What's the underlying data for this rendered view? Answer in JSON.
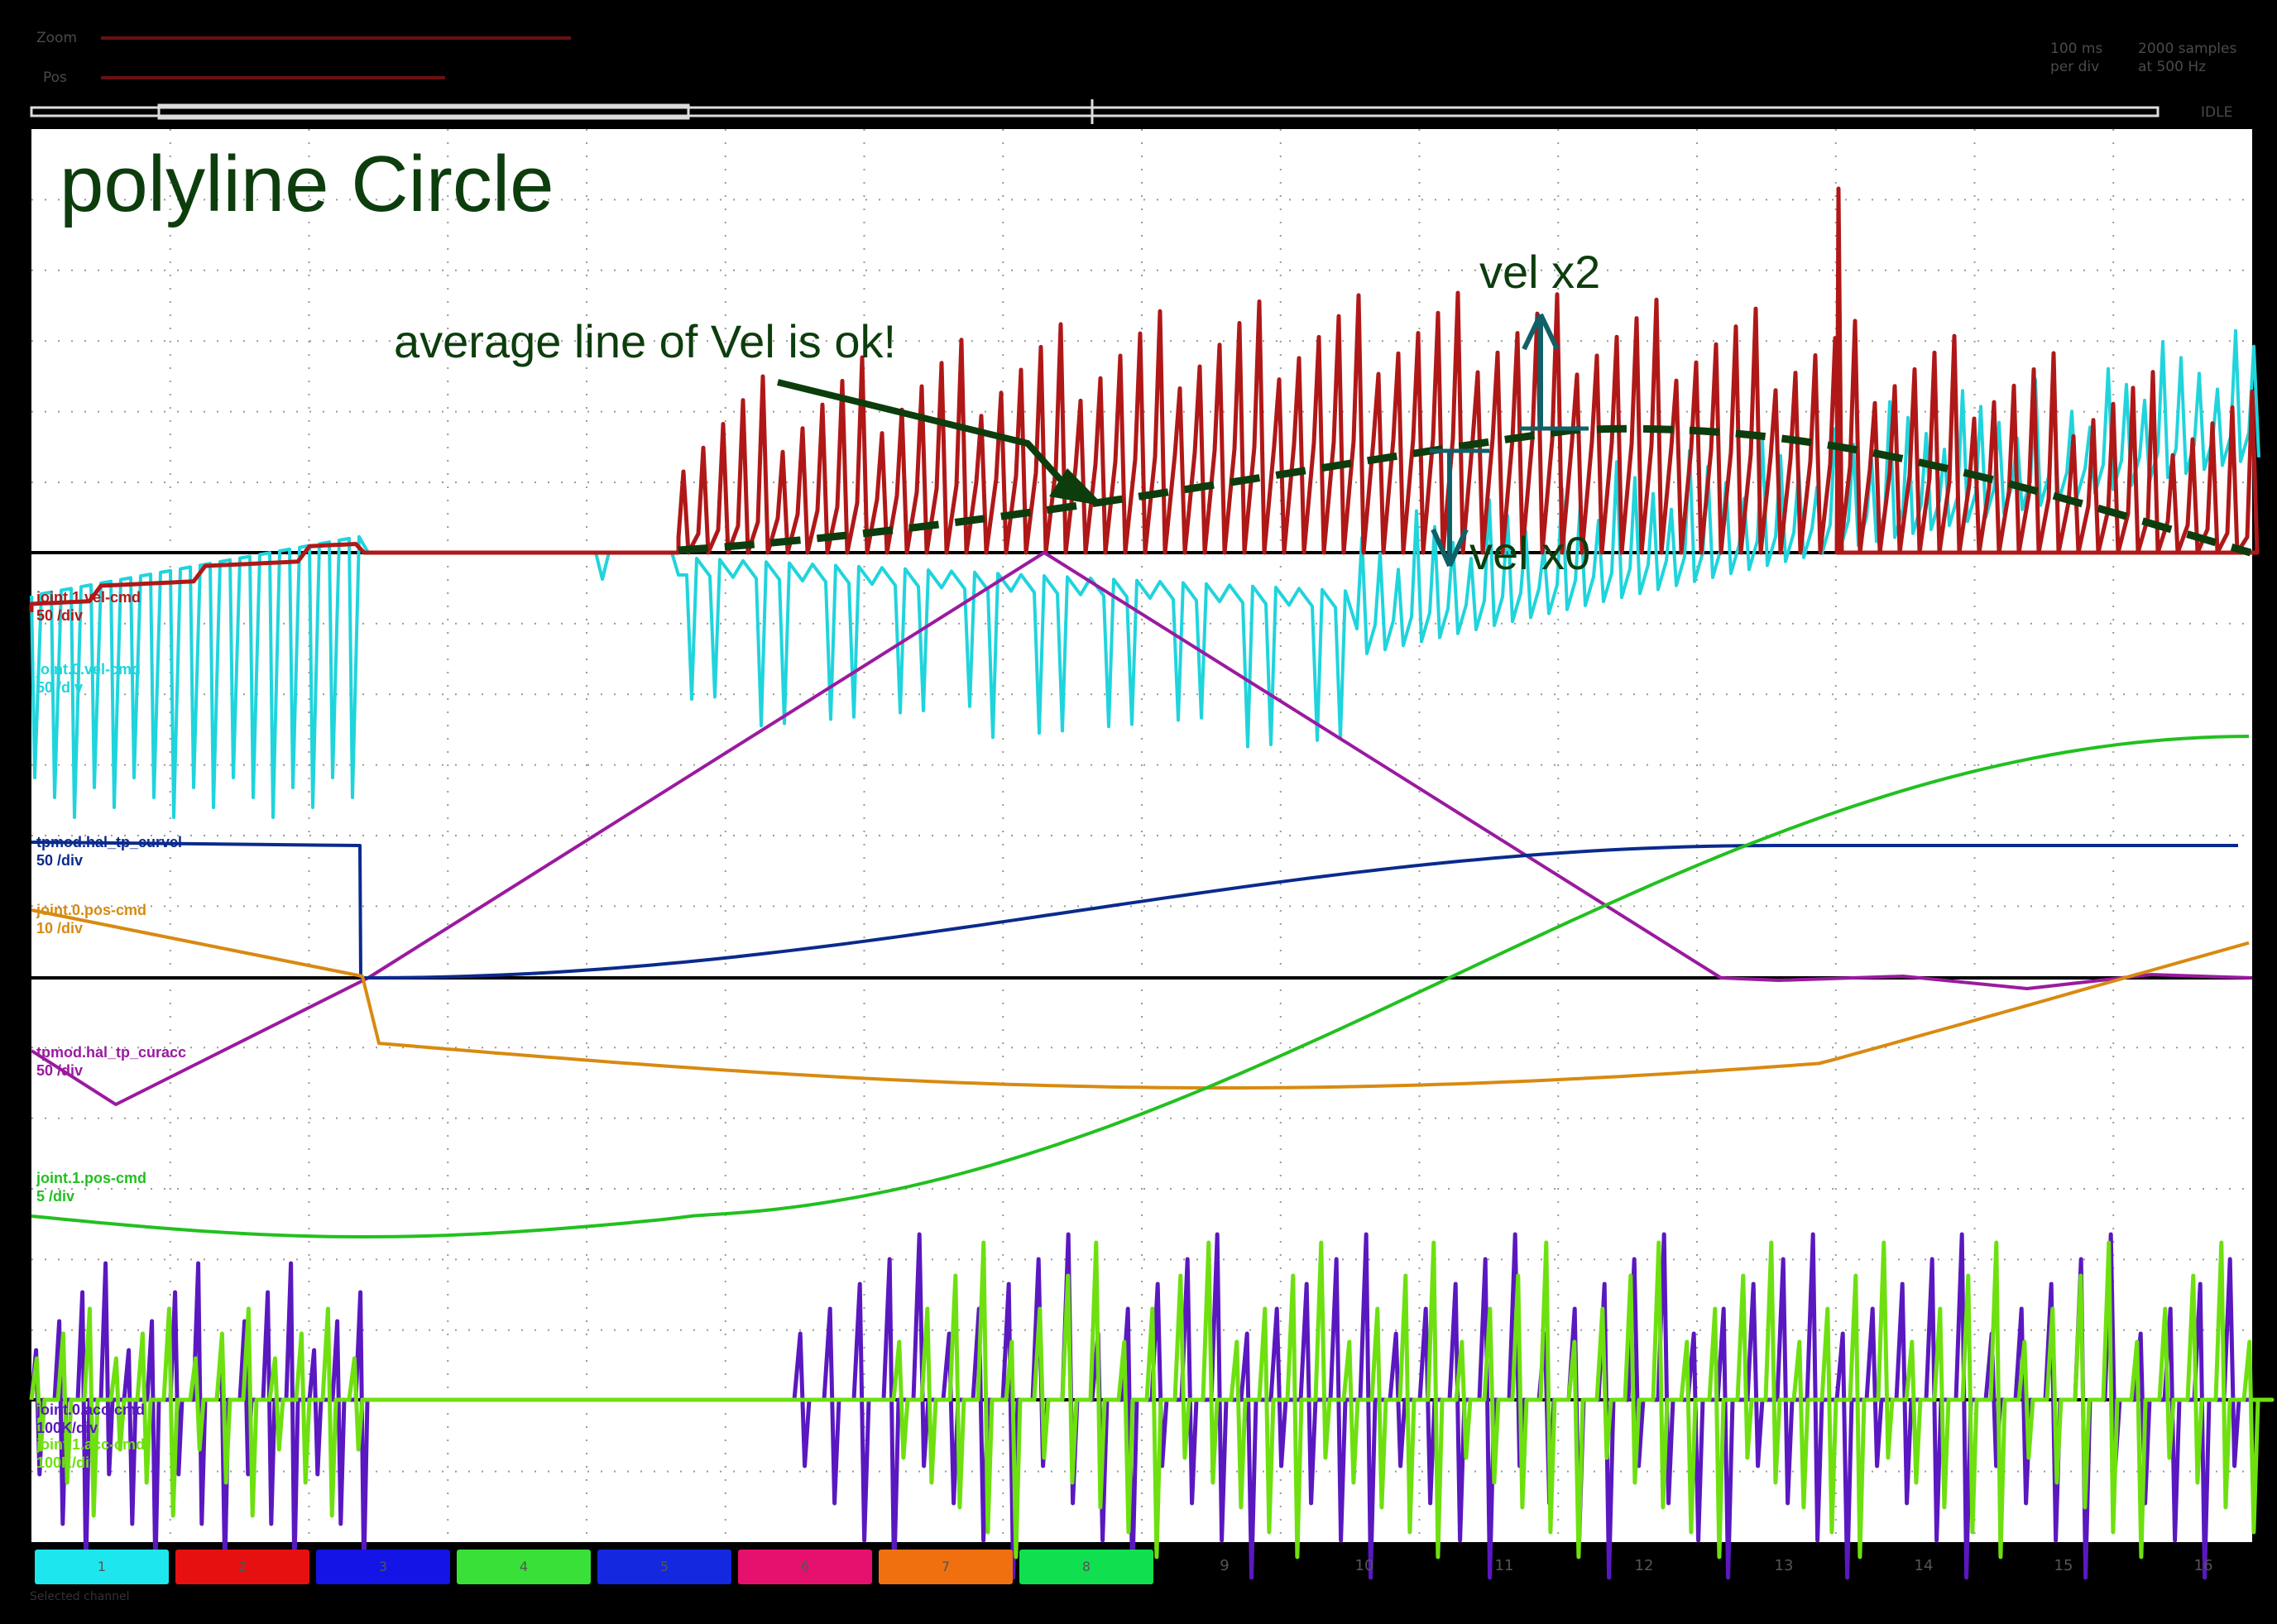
{
  "header": {
    "zoom_label": "Zoom",
    "pos_label": "Pos",
    "timebase": "100 ms\nper div",
    "samples": "2000 samples\nat 500 Hz",
    "state": "IDLE"
  },
  "annotations": {
    "title": "polyline Circle",
    "average_note": "average line of Vel is ok!",
    "vel_x2": "vel x2",
    "vel_x0": "vel x0"
  },
  "traces": [
    {
      "name": "joint.1.vel-cmd",
      "scale": "50 /div",
      "color": "#b01818"
    },
    {
      "name": "joint.0.vel-cmd",
      "scale": "50 /div",
      "color": "#20d4dc"
    },
    {
      "name": "tpmod.hal_tp_curvel",
      "scale": "50 /div",
      "color": "#0a2a8c"
    },
    {
      "name": "joint.0.pos-cmd",
      "scale": "10 /div",
      "color": "#d88a10"
    },
    {
      "name": "tpmod.hal_tp_curacc",
      "scale": "50 /div",
      "color": "#9a1aa0"
    },
    {
      "name": "joint.1.pos-cmd",
      "scale": "5 /div",
      "color": "#22c020"
    },
    {
      "name": "joint.0.acc-cmd",
      "scale": "100K/div",
      "color": "#5a18c0"
    },
    {
      "name": "joint.1.acc-cmd",
      "scale": "100K/div",
      "color": "#6ee010"
    }
  ],
  "channels": [
    {
      "label": "1",
      "color": "#1ee6ee"
    },
    {
      "label": "2",
      "color": "#e61010"
    },
    {
      "label": "3",
      "color": "#1414e6"
    },
    {
      "label": "4",
      "color": "#38e038"
    },
    {
      "label": "5",
      "color": "#1428e0"
    },
    {
      "label": "6",
      "color": "#e6106e"
    },
    {
      "label": "7",
      "color": "#f07010"
    },
    {
      "label": "8",
      "color": "#10e050"
    },
    {
      "label": "9"
    },
    {
      "label": "10"
    },
    {
      "label": "11"
    },
    {
      "label": "12"
    },
    {
      "label": "13"
    },
    {
      "label": "14"
    },
    {
      "label": "15"
    },
    {
      "label": "16"
    }
  ],
  "footer": "Selected channel",
  "colors": {
    "annotation": "#0d3d0d",
    "arrow": "#106068",
    "background": "#000000"
  }
}
